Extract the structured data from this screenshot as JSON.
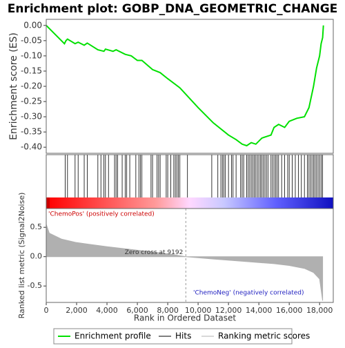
{
  "chart_data": [
    {
      "type": "line",
      "title": "Enrichment plot: GOBP_DNA_GEOMETRIC_CHANGE",
      "ylabel": "Enrichment score (ES)",
      "color": "#00e000",
      "legend": [
        "Enrichment profile",
        "Hits",
        "Ranking metric scores"
      ],
      "x": [
        0,
        1200,
        1300,
        1400,
        1900,
        2100,
        2500,
        2700,
        3400,
        3800,
        3900,
        4400,
        4600,
        5200,
        5600,
        6000,
        6300,
        7000,
        7500,
        8000,
        8800,
        10000,
        11000,
        12000,
        12500,
        12900,
        13200,
        13500,
        13800,
        14200,
        14800,
        15000,
        15300,
        15700,
        16000,
        16500,
        17000,
        17300,
        17600,
        17800,
        18000,
        18100,
        18200,
        18250
      ],
      "values": [
        0,
        -0.06,
        -0.05,
        -0.045,
        -0.06,
        -0.055,
        -0.065,
        -0.058,
        -0.08,
        -0.085,
        -0.078,
        -0.085,
        -0.08,
        -0.095,
        -0.1,
        -0.115,
        -0.115,
        -0.145,
        -0.155,
        -0.175,
        -0.205,
        -0.27,
        -0.32,
        -0.36,
        -0.375,
        -0.39,
        -0.395,
        -0.385,
        -0.39,
        -0.37,
        -0.36,
        -0.335,
        -0.325,
        -0.335,
        -0.315,
        -0.305,
        -0.3,
        -0.27,
        -0.2,
        -0.14,
        -0.1,
        -0.06,
        -0.04,
        0
      ],
      "ylim": [
        -0.42,
        0.02
      ],
      "yticks": [
        {
          "value": 0,
          "label": "0.00"
        },
        -0.05,
        {
          "value": -0.1,
          "label": "-0.10"
        },
        -0.15,
        {
          "value": -0.2,
          "label": "-0.20"
        },
        -0.25,
        {
          "value": -0.3,
          "label": "-0.30"
        },
        -0.35,
        {
          "value": -0.4,
          "label": "-0.40"
        }
      ]
    },
    {
      "type": "event",
      "color": "#000000",
      "x": [
        1250,
        1400,
        1900,
        2100,
        2500,
        2700,
        3400,
        3600,
        3800,
        3900,
        4100,
        4500,
        4600,
        4700,
        5000,
        5200,
        5300,
        5500,
        5900,
        6100,
        6200,
        6300,
        6900,
        7000,
        7300,
        7400,
        7500,
        7900,
        8000,
        8200,
        8400,
        8500,
        8600,
        8700,
        8800,
        9300,
        10900,
        11300,
        11500,
        11600,
        11700,
        11800,
        12000,
        12200,
        12300,
        12500,
        12800,
        12900,
        13000,
        13200,
        13300,
        13400,
        13500,
        13600,
        13700,
        13800,
        13900,
        14000,
        14100,
        14200,
        14300,
        14400,
        14500,
        14600,
        14800,
        14900,
        15000,
        15100,
        15200,
        15300,
        15500,
        15700,
        15900,
        16000,
        16200,
        16400,
        16600,
        16800,
        17000,
        17200,
        17300,
        17400,
        17500,
        17600,
        17700,
        17800,
        17900,
        18000,
        18100,
        18200
      ]
    },
    {
      "type": "area",
      "ylabel": "Ranked list metric (Signal2Noise)",
      "xlabel": "Rank in Ordered Dataset",
      "color": "#b0b0b0",
      "x": [
        0,
        200,
        1000,
        2000,
        4000,
        6000,
        8000,
        9192,
        11000,
        13000,
        15000,
        16000,
        17000,
        17600,
        18000,
        18200
      ],
      "values": [
        0.55,
        0.4,
        0.3,
        0.24,
        0.17,
        0.11,
        0.05,
        0,
        -0.04,
        -0.08,
        -0.12,
        -0.15,
        -0.2,
        -0.27,
        -0.38,
        -0.75
      ],
      "xlim": [
        0,
        18900
      ],
      "xticks": [
        0,
        {
          "value": 2000,
          "label": "2,000"
        },
        {
          "value": 4000,
          "label": "4,000"
        },
        {
          "value": 6000,
          "label": "6,000"
        },
        {
          "value": 8000,
          "label": "8,000"
        },
        {
          "value": 10000,
          "label": "10,000"
        },
        {
          "value": 12000,
          "label": "12,000"
        },
        {
          "value": 14000,
          "label": "14,000"
        },
        {
          "value": 16000,
          "label": "16,000"
        },
        {
          "value": 18000,
          "label": "18,000"
        }
      ],
      "ylim": [
        -0.78,
        0.82
      ],
      "yticks": [
        0.5,
        {
          "value": 0,
          "label": "0.0"
        },
        -0.5
      ],
      "zero_cross": 9192,
      "zero_cross_label": "Zero cross at 9192",
      "pos_label": "'ChemoPos' (positively correlated)",
      "neg_label": "'ChemoNeg' (negatively correlated)"
    }
  ]
}
